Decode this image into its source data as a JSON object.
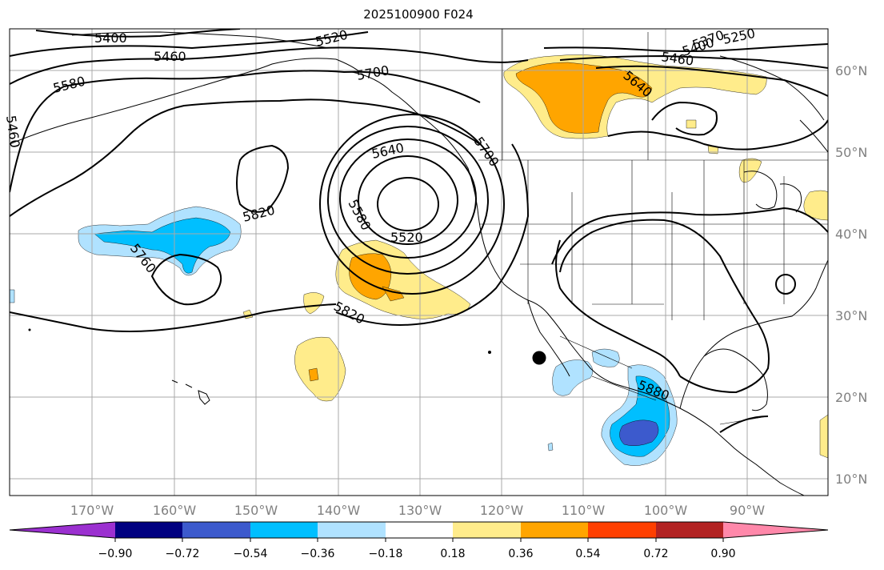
{
  "title": "2025100900 F024",
  "lat_labels": [
    "60°N",
    "50°N",
    "40°N",
    "30°N",
    "20°N",
    "10°N"
  ],
  "lon_labels": [
    "170°W",
    "160°W",
    "150°W",
    "140°W",
    "130°W",
    "120°W",
    "110°W",
    "100°W",
    "90°W"
  ],
  "contour_labels": [
    "5400",
    "5460",
    "5520",
    "5580",
    "5700",
    "5640",
    "5460",
    "5640",
    "5700",
    "5580",
    "5520",
    "5820",
    "5760",
    "5820",
    "5880",
    "5400",
    "5460",
    "5370",
    "5250"
  ],
  "colorbar": {
    "tick_labels": [
      "−0.90",
      "−0.72",
      "−0.54",
      "−0.36",
      "−0.18",
      "0.18",
      "0.36",
      "0.54",
      "0.72",
      "0.90"
    ],
    "colors": [
      "#9b30d0",
      "#000080",
      "#3c5acd",
      "#00bfff",
      "#b0e2ff",
      "#ffffff",
      "#ffec8b",
      "#ffa500",
      "#ff3f00",
      "#b22222",
      "#ff88aa"
    ]
  },
  "shading_colors": {
    "light_blue": "#b0e2ff",
    "blue": "#00bfff",
    "royal_blue": "#3c5acd",
    "light_yellow": "#ffec8b",
    "orange": "#ffa500"
  }
}
